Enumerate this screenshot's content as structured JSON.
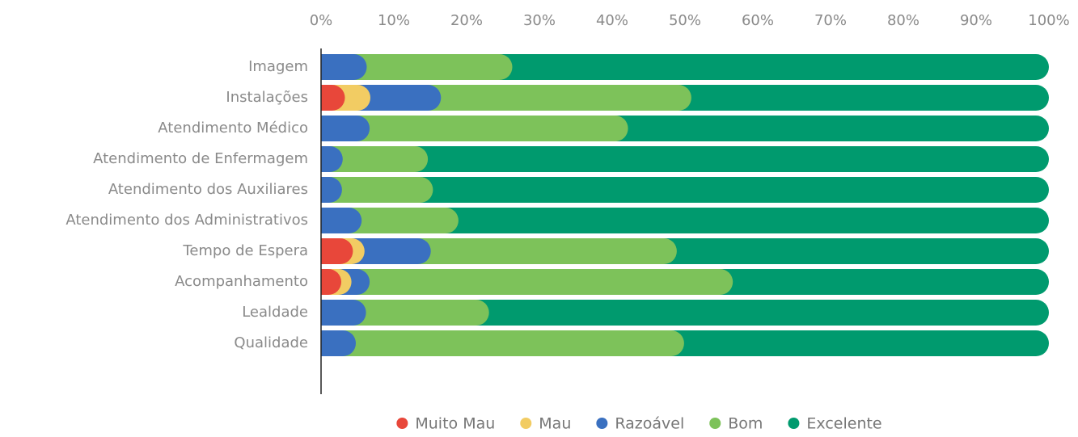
{
  "chart_data": {
    "type": "stacked_bar_horizontal",
    "categories": [
      "Imagem",
      "Instalações",
      "Atendimento Médico",
      "Atendimento de Enfermagem",
      "Atendimento dos Auxiliares",
      "Atendimento dos Administrativos",
      "Tempo de Espera",
      "Acompanhamento",
      "Lealdade",
      "Qualidade"
    ],
    "series": [
      {
        "name": "Muito Mau",
        "color": "#e8473a",
        "values": [
          0,
          1.5,
          0,
          0,
          0,
          0,
          2.6,
          1.0,
          0,
          0
        ]
      },
      {
        "name": "Mau",
        "color": "#f2cc63",
        "values": [
          0,
          3.5,
          0,
          0,
          0,
          0,
          1.6,
          1.4,
          0,
          0
        ]
      },
      {
        "name": "Razoável",
        "color": "#3a70c0",
        "values": [
          4.5,
          9.7,
          4.9,
          1.2,
          1.1,
          3.8,
          9.1,
          2.5,
          4.4,
          3.0
        ]
      },
      {
        "name": "Bom",
        "color": "#7dc25a",
        "values": [
          20.0,
          34.4,
          35.5,
          11.7,
          12.5,
          13.3,
          33.8,
          49.9,
          16.9,
          45.1
        ]
      },
      {
        "name": "Excelente",
        "color": "#009a6e",
        "values": [
          75.5,
          50.9,
          59.6,
          87.1,
          86.4,
          82.9,
          52.9,
          45.2,
          78.7,
          51.9
        ]
      }
    ],
    "xlim": [
      0,
      100
    ],
    "xticks": [
      {
        "value": 0,
        "label": "0%"
      },
      {
        "value": 10,
        "label": "10%"
      },
      {
        "value": 20,
        "label": "20%"
      },
      {
        "value": 30,
        "label": "30%"
      },
      {
        "value": 40,
        "label": "40%"
      },
      {
        "value": 50,
        "label": "50%"
      },
      {
        "value": 60,
        "label": "60%"
      },
      {
        "value": 70,
        "label": "70%"
      },
      {
        "value": 80,
        "label": "80%"
      },
      {
        "value": 90,
        "label": "90%"
      },
      {
        "value": 100,
        "label": "100%"
      }
    ],
    "legend": "bottom"
  }
}
